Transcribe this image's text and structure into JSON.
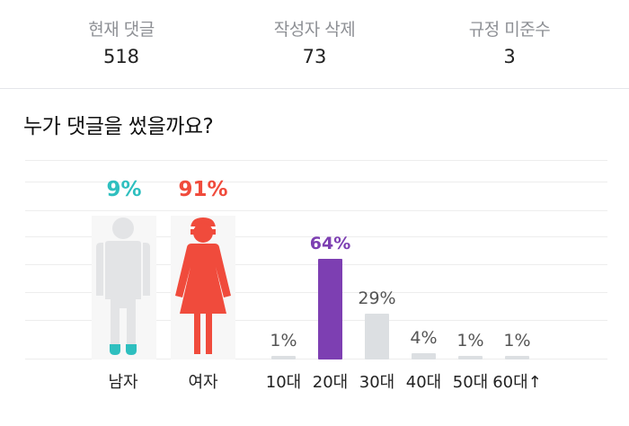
{
  "stats": [
    {
      "label": "현재 댓글",
      "value": "518"
    },
    {
      "label": "작성자 삭제",
      "value": "73"
    },
    {
      "label": "규정 미준수",
      "value": "3"
    }
  ],
  "section_title": "누가 댓글을 썼을까요?",
  "gender": {
    "male": {
      "label": "남자",
      "percent_text": "9%",
      "value": 9,
      "color": "#2ebfbf",
      "body_color": "#e3e4e6"
    },
    "female": {
      "label": "여자",
      "percent_text": "91%",
      "value": 91,
      "color": "#f04b3c",
      "body_color": "#f04b3c"
    }
  },
  "icons": {
    "male": "male-figure-icon",
    "female": "female-figure-icon"
  },
  "chart_data": {
    "type": "bar",
    "categories": [
      "10대",
      "20대",
      "30대",
      "40대",
      "50대",
      "60대↑"
    ],
    "values": [
      1,
      64,
      29,
      4,
      1,
      1
    ],
    "value_labels": [
      "1%",
      "64%",
      "29%",
      "4%",
      "1%",
      "1%"
    ],
    "highlight_index": 1,
    "highlight_color": "#7d3fb2",
    "bar_color": "#dcdfe2",
    "label_color": "#555555",
    "title": "",
    "xlabel": "",
    "ylabel": ""
  }
}
